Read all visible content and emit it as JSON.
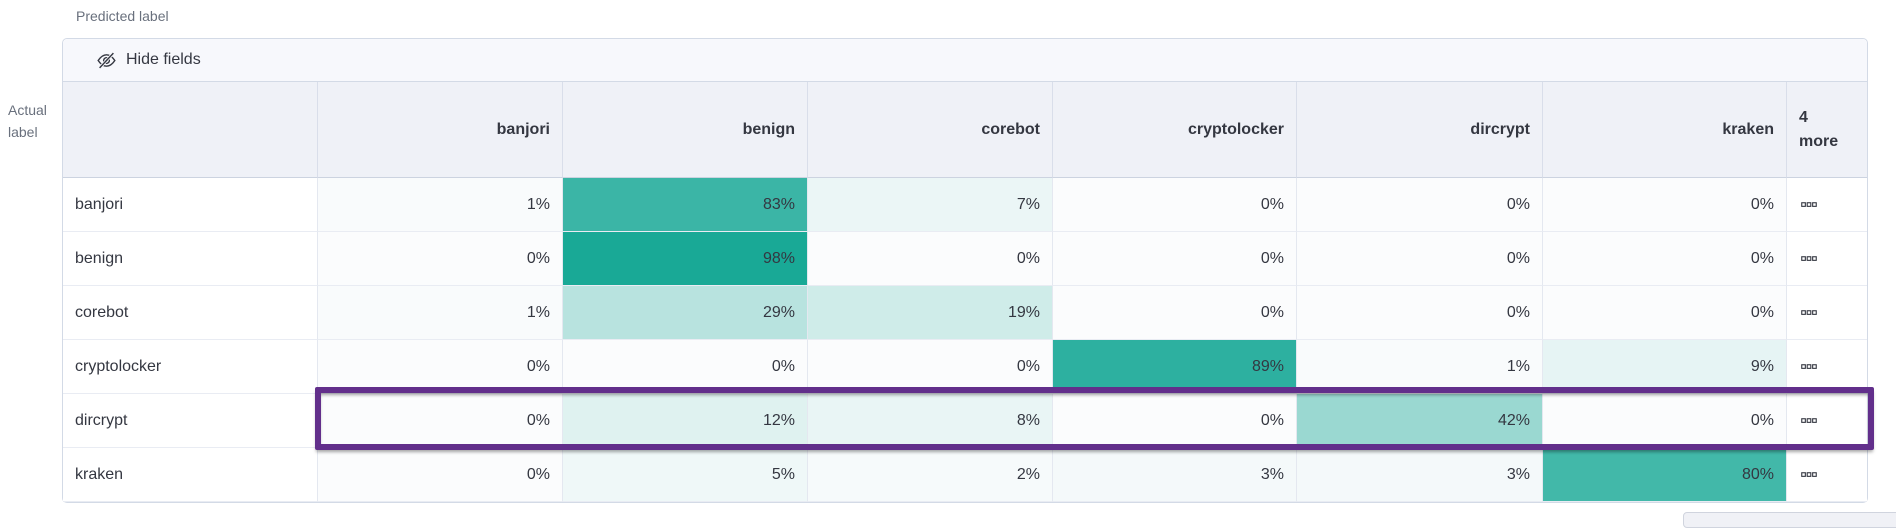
{
  "axes": {
    "predicted_label": "Predicted label",
    "actual_label": "Actual label"
  },
  "toolbar": {
    "hide_fields_label": "Hide fields"
  },
  "chart_data": {
    "type": "heatmap",
    "xlabel": "Predicted label",
    "ylabel": "Actual label",
    "columns": [
      "banjori",
      "benign",
      "corebot",
      "cryptolocker",
      "dircrypt",
      "kraken"
    ],
    "hidden_columns_note": "4 more",
    "value_suffix": "%",
    "rows": [
      {
        "label": "banjori",
        "values_pct": [
          1,
          83,
          7,
          0,
          0,
          0
        ],
        "highlighted": false
      },
      {
        "label": "benign",
        "values_pct": [
          0,
          98,
          0,
          0,
          0,
          0
        ],
        "highlighted": false
      },
      {
        "label": "corebot",
        "values_pct": [
          1,
          29,
          19,
          0,
          0,
          0
        ],
        "highlighted": false
      },
      {
        "label": "cryptolocker",
        "values_pct": [
          0,
          0,
          0,
          89,
          1,
          9
        ],
        "highlighted": false
      },
      {
        "label": "dircrypt",
        "values_pct": [
          0,
          12,
          8,
          0,
          42,
          0
        ],
        "highlighted": true
      },
      {
        "label": "kraken",
        "values_pct": [
          0,
          5,
          2,
          3,
          3,
          80
        ],
        "highlighted": false
      }
    ],
    "colors": {
      "scale_min": "#fbfcfd",
      "scale_max": "#14a794",
      "highlight": "#622f8b"
    },
    "legend": "off",
    "grid": "on"
  }
}
